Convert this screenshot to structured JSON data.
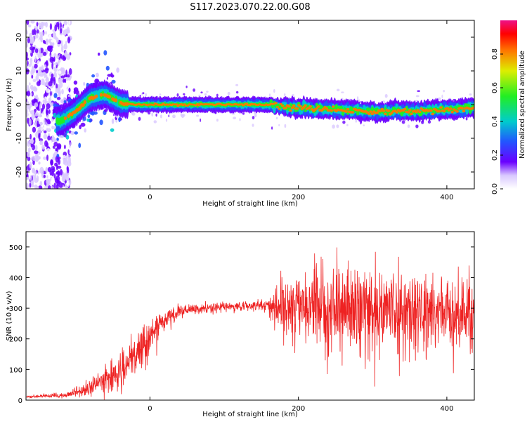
{
  "figure": {
    "title": "S117.2023.070.22.00.G08"
  },
  "chart_data": [
    {
      "type": "heatmap",
      "xlabel": "Height of straight line (km)",
      "ylabel": "Frequency (Hz)",
      "xlim": [
        -167,
        437
      ],
      "ylim": [
        -25,
        25
      ],
      "xticks": [
        0,
        200,
        400
      ],
      "yticks": [
        -20,
        -10,
        0,
        10,
        20
      ],
      "colorbar": {
        "label": "Normalized spectral amplitude",
        "range": [
          0,
          1
        ],
        "ticks": [
          "0.0",
          "0.2",
          "0.4",
          "0.6",
          "0.8"
        ]
      },
      "ridge": {
        "description_points_x": [
          -120,
          -100,
          -80,
          -60,
          -40,
          -20,
          0,
          50,
          100,
          150,
          200,
          250,
          300,
          350,
          400,
          437
        ],
        "description_points_y": [
          -5,
          -2,
          2,
          3,
          0.5,
          0,
          0,
          0,
          0,
          0,
          -1,
          -1.5,
          -2,
          -2,
          -1.5,
          -1
        ]
      }
    },
    {
      "type": "line",
      "xlabel": "Height of straight line (km)",
      "ylabel": "SNR (10 * v/v)",
      "xlim": [
        -167,
        437
      ],
      "ylim": [
        0,
        550
      ],
      "xticks": [
        0,
        200,
        400
      ],
      "yticks": [
        0,
        100,
        200,
        300,
        400,
        500
      ],
      "series": [
        {
          "color": "#ee2222",
          "envelope_x": [
            -167,
            -120,
            -100,
            -80,
            -60,
            -40,
            -20,
            0,
            20,
            40,
            60,
            80,
            100,
            120,
            140,
            160,
            170,
            200,
            250,
            300,
            350,
            400,
            437
          ],
          "envelope_mean": [
            10,
            15,
            25,
            40,
            70,
            90,
            140,
            210,
            260,
            290,
            295,
            300,
            305,
            305,
            310,
            310,
            300,
            305,
            300,
            295,
            290,
            285,
            280
          ],
          "envelope_spread": [
            5,
            8,
            15,
            25,
            40,
            50,
            60,
            60,
            30,
            20,
            15,
            15,
            15,
            15,
            15,
            15,
            80,
            110,
            120,
            130,
            120,
            110,
            110
          ]
        }
      ]
    }
  ]
}
